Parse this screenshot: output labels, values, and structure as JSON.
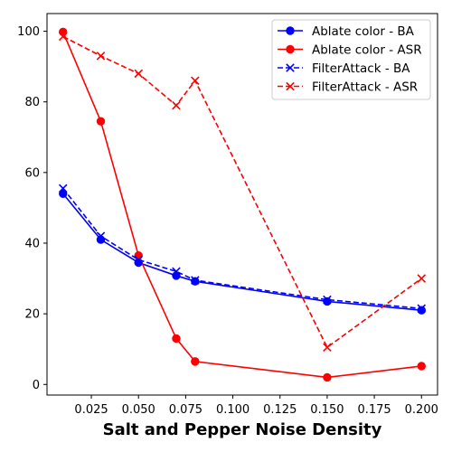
{
  "chart_data": {
    "type": "line",
    "title": "",
    "xlabel": "Salt and Pepper Noise Density",
    "ylabel": "",
    "xlim": [
      0.0015,
      0.2085
    ],
    "ylim": [
      -3,
      105
    ],
    "xticks": [
      0.025,
      0.05,
      0.075,
      0.1,
      0.125,
      0.15,
      0.175,
      0.2
    ],
    "xtick_labels": [
      "0.025",
      "0.050",
      "0.075",
      "0.100",
      "0.125",
      "0.150",
      "0.175",
      "0.200"
    ],
    "yticks": [
      0,
      20,
      40,
      60,
      80,
      100
    ],
    "ytick_labels": [
      "0",
      "20",
      "40",
      "60",
      "80",
      "100"
    ],
    "grid": false,
    "legend_position": "top-right",
    "series": [
      {
        "name": "Ablate color - BA",
        "color": "#0000ff",
        "linestyle": "solid",
        "marker": "circle",
        "x": [
          0.01,
          0.03,
          0.05,
          0.07,
          0.08,
          0.15,
          0.2
        ],
        "y": [
          54.0,
          41.0,
          34.5,
          30.8,
          29.2,
          23.5,
          21.0
        ]
      },
      {
        "name": "Ablate color - ASR",
        "color": "#ff0000",
        "linestyle": "solid",
        "marker": "circle",
        "x": [
          0.01,
          0.03,
          0.05,
          0.07,
          0.08,
          0.15,
          0.2
        ],
        "y": [
          99.8,
          74.5,
          36.5,
          13.0,
          6.5,
          2.0,
          5.2
        ]
      },
      {
        "name": "FilterAttack - BA",
        "color": "#0000ff",
        "linestyle": "dashed",
        "marker": "x",
        "x": [
          0.01,
          0.03,
          0.05,
          0.07,
          0.08,
          0.15,
          0.2
        ],
        "y": [
          55.5,
          42.0,
          35.3,
          32.0,
          29.5,
          24.0,
          21.5
        ]
      },
      {
        "name": "FilterAttack - ASR",
        "color": "#ff0000",
        "linestyle": "dashed",
        "marker": "x",
        "x": [
          0.01,
          0.03,
          0.05,
          0.07,
          0.08,
          0.15,
          0.2
        ],
        "y": [
          98.5,
          93.0,
          88.0,
          79.0,
          86.0,
          10.5,
          30.0
        ]
      }
    ]
  }
}
